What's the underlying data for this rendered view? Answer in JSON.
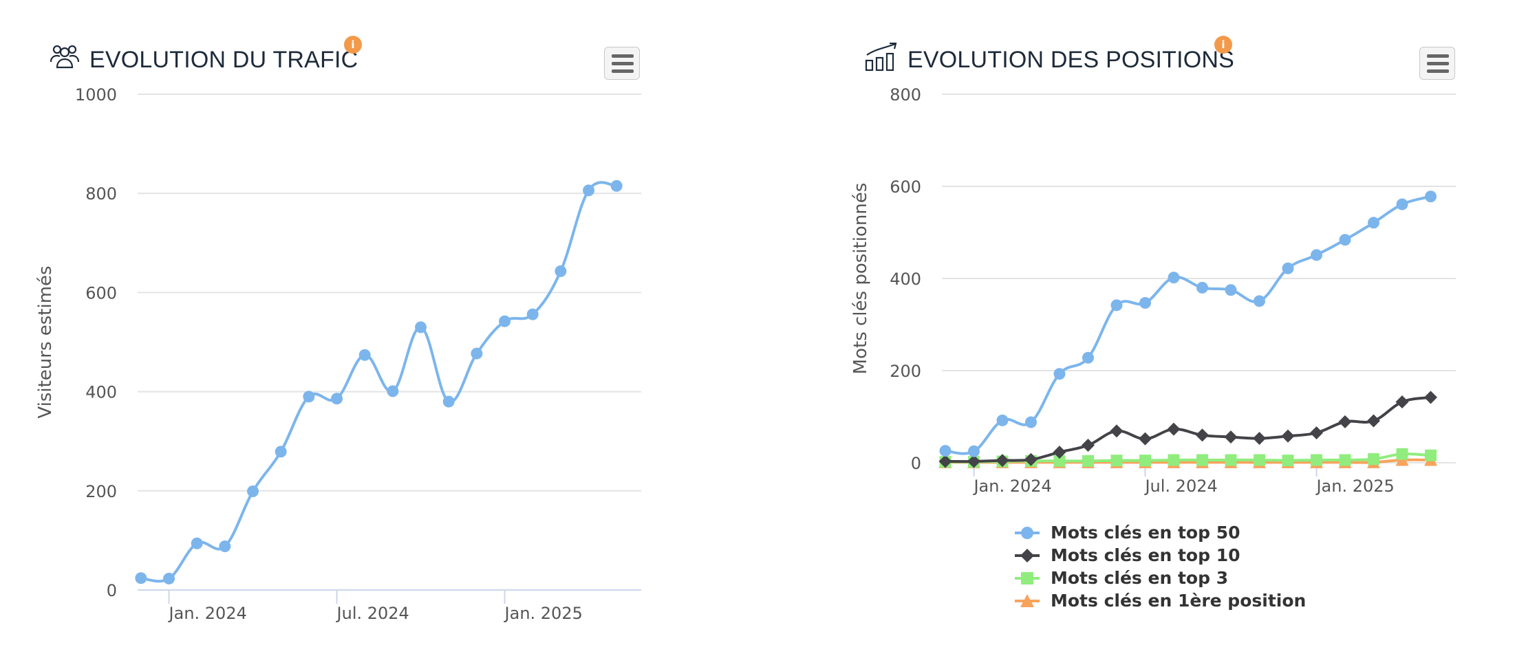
{
  "traffic": {
    "title": "EVOLUTION DU TRAFIC",
    "info_badge": "i",
    "icon": "users-group-icon",
    "menu_icon": "hamburger-menu-icon",
    "chart_data": {
      "type": "line",
      "title": "EVOLUTION DU TRAFIC",
      "ylabel": "Visiteurs estimés",
      "xlabel": "",
      "ylim": [
        0,
        1000
      ],
      "yticks": [
        0,
        200,
        400,
        600,
        800,
        1000
      ],
      "xticks": [
        {
          "label": "Jan. 2024",
          "index": 1
        },
        {
          "label": "Jul. 2024",
          "index": 7
        },
        {
          "label": "Jan. 2025",
          "index": 13
        }
      ],
      "grid": true,
      "series": [
        {
          "color": "#7cb5ec",
          "marker": "circle",
          "values": [
            24,
            23,
            94,
            88,
            199,
            279,
            390,
            386,
            474,
            401,
            530,
            380,
            477,
            542,
            556,
            643,
            806,
            815
          ]
        }
      ]
    }
  },
  "positions": {
    "title": "EVOLUTION DES POSITIONS",
    "info_badge": "i",
    "icon": "chart-growth-icon",
    "menu_icon": "hamburger-menu-icon",
    "chart_data": {
      "type": "line",
      "title": "EVOLUTION DES POSITIONS",
      "ylabel": "Mots clés positionnés",
      "xlabel": "",
      "ylim": [
        0,
        800
      ],
      "yticks": [
        0,
        200,
        400,
        600,
        800
      ],
      "xticks": [
        {
          "label": "Jan. 2024",
          "index": 1
        },
        {
          "label": "Jul. 2024",
          "index": 7
        },
        {
          "label": "Jan. 2025",
          "index": 13
        }
      ],
      "grid": true,
      "legend": "bottom",
      "series": [
        {
          "name": "Mots clés en top 50",
          "color": "#7cb5ec",
          "marker": "circle",
          "values": [
            26,
            25,
            92,
            88,
            193,
            228,
            342,
            347,
            402,
            380,
            375,
            351,
            422,
            451,
            484,
            521,
            561,
            578
          ]
        },
        {
          "name": "Mots clés en top 10",
          "color": "#434348",
          "marker": "diamond",
          "values": [
            3,
            3,
            5,
            7,
            23,
            38,
            69,
            52,
            73,
            60,
            56,
            53,
            58,
            65,
            89,
            91,
            132,
            142
          ]
        },
        {
          "name": "Mots clés en top 3",
          "color": "#90ed7d",
          "marker": "square",
          "values": [
            2,
            2,
            3,
            4,
            4,
            4,
            5,
            5,
            6,
            6,
            6,
            6,
            5,
            6,
            6,
            8,
            19,
            16
          ]
        },
        {
          "name": "Mots clés en 1ère position",
          "color": "#f7a35c",
          "marker": "triangle",
          "values": [
            1,
            1,
            1,
            1,
            1,
            1,
            1,
            1,
            1,
            1,
            1,
            1,
            1,
            1,
            1,
            1,
            6,
            6
          ]
        }
      ]
    }
  }
}
